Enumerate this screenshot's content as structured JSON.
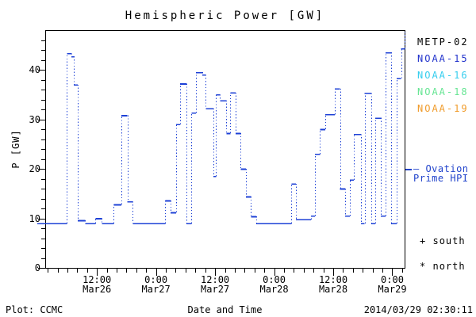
{
  "title": "Hemispheric Power [GW]",
  "footer": {
    "left": "Plot: CCMC",
    "center": "Date and Time",
    "right": "2014/03/29 02:30:11"
  },
  "legend": {
    "satellites": [
      {
        "label": "METP-02",
        "color": "#000000"
      },
      {
        "label": "NOAA-15",
        "color": "#2233cc"
      },
      {
        "label": "NOAA-16",
        "color": "#33cdee"
      },
      {
        "label": "NOAA-18",
        "color": "#66e593"
      },
      {
        "label": "NOAA-19",
        "color": "#f09b2a"
      }
    ],
    "ovation": {
      "line1": "— Ovation",
      "line2": "Prime HPI",
      "color": "#2244cc"
    },
    "markers": [
      {
        "symbol": "+",
        "label": "south"
      },
      {
        "symbol": "*",
        "label": "north"
      }
    ]
  },
  "chart_data": {
    "type": "line",
    "subtype": "step-dotted",
    "title": "Hemispheric Power [GW]",
    "xlabel": "Date and Time",
    "ylabel": "P [GW]",
    "ylim": [
      0,
      48
    ],
    "yticks": [
      0,
      10,
      20,
      30,
      40
    ],
    "y_minor_step": 2,
    "x_hours_range": [
      1.5,
      74.6
    ],
    "x_minor_step_hours": 2,
    "xticks": [
      {
        "hours": 12,
        "time": "12:00",
        "date": "Mar26"
      },
      {
        "hours": 24,
        "time": "0:00",
        "date": "Mar27"
      },
      {
        "hours": 36,
        "time": "12:00",
        "date": "Mar27"
      },
      {
        "hours": 48,
        "time": "0:00",
        "date": "Mar28"
      },
      {
        "hours": 60,
        "time": "12:00",
        "date": "Mar28"
      },
      {
        "hours": 72,
        "time": "0:00",
        "date": "Mar29"
      }
    ],
    "series": [
      {
        "name": "Ovation Prime HPI",
        "color": "#1d40d6",
        "units": "GW",
        "steps_hours_gw": [
          [
            -0.1,
            9
          ],
          [
            5.9,
            43.3
          ],
          [
            6.8,
            42.7
          ],
          [
            7.3,
            37
          ],
          [
            8.1,
            9.6
          ],
          [
            9.6,
            9
          ],
          [
            11.7,
            10
          ],
          [
            13.0,
            9
          ],
          [
            15.4,
            12.8
          ],
          [
            17.0,
            30.8
          ],
          [
            18.2,
            13.4
          ],
          [
            19.3,
            9
          ],
          [
            25.9,
            13.6
          ],
          [
            27.0,
            11.2
          ],
          [
            28.1,
            29
          ],
          [
            28.9,
            37.2
          ],
          [
            30.2,
            9
          ],
          [
            31.2,
            31.3
          ],
          [
            32.1,
            39.5
          ],
          [
            33.4,
            39
          ],
          [
            34.1,
            32.2
          ],
          [
            35.7,
            18.5
          ],
          [
            36.2,
            35
          ],
          [
            37.0,
            33.8
          ],
          [
            38.3,
            27.2
          ],
          [
            39.1,
            35.4
          ],
          [
            40.2,
            27.2
          ],
          [
            41.2,
            20
          ],
          [
            42.3,
            14.4
          ],
          [
            43.3,
            10.4
          ],
          [
            44.4,
            9
          ],
          [
            51.5,
            17
          ],
          [
            52.4,
            9.8
          ],
          [
            55.5,
            10.5
          ],
          [
            56.3,
            23
          ],
          [
            57.3,
            28
          ],
          [
            58.4,
            31
          ],
          [
            60.3,
            36.2
          ],
          [
            61.4,
            16
          ],
          [
            62.4,
            10.5
          ],
          [
            63.4,
            17.8
          ],
          [
            64.2,
            27
          ],
          [
            65.6,
            9
          ],
          [
            66.4,
            35.3
          ],
          [
            67.7,
            9
          ],
          [
            68.5,
            30.3
          ],
          [
            69.7,
            10.5
          ],
          [
            70.6,
            43.5
          ],
          [
            71.8,
            9
          ],
          [
            72.9,
            38.3
          ],
          [
            73.8,
            44.3
          ],
          [
            74.55,
            47.9
          ]
        ]
      }
    ]
  }
}
